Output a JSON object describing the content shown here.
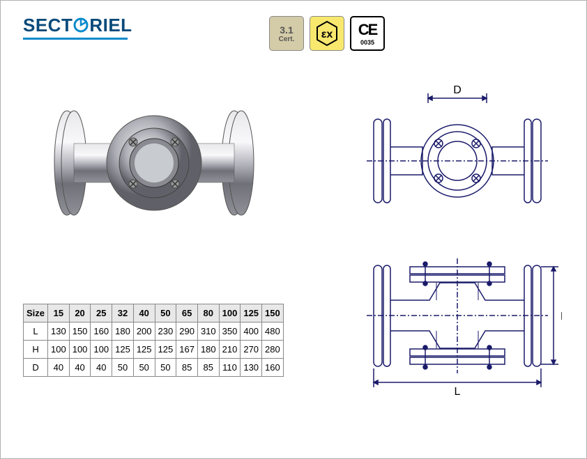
{
  "logo": {
    "text_before": "SECT",
    "text_after": "RIEL",
    "color_primary": "#0a4a7a",
    "color_accent": "#0a8acc"
  },
  "badges": {
    "cert": {
      "line1": "3.1",
      "line2": "Cert."
    },
    "ex": {
      "epsilon": "ε",
      "x": "x"
    },
    "ce": {
      "mark": "CE",
      "number": "0035"
    }
  },
  "diagrams": {
    "label_D": "D",
    "label_H": "H",
    "label_L": "L",
    "line_color": "#1a1a6a",
    "line_width": 1.5
  },
  "table": {
    "header": [
      "Size",
      "15",
      "20",
      "25",
      "32",
      "40",
      "50",
      "65",
      "80",
      "100",
      "125",
      "150"
    ],
    "rows": [
      [
        "L",
        "130",
        "150",
        "160",
        "180",
        "200",
        "230",
        "290",
        "310",
        "350",
        "400",
        "480"
      ],
      [
        "H",
        "100",
        "100",
        "100",
        "125",
        "125",
        "125",
        "167",
        "180",
        "210",
        "270",
        "280"
      ],
      [
        "D",
        "40",
        "40",
        "40",
        "50",
        "50",
        "50",
        "85",
        "85",
        "110",
        "130",
        "160"
      ]
    ],
    "header_bg": "#e8e8e8",
    "border_color": "#888888"
  }
}
